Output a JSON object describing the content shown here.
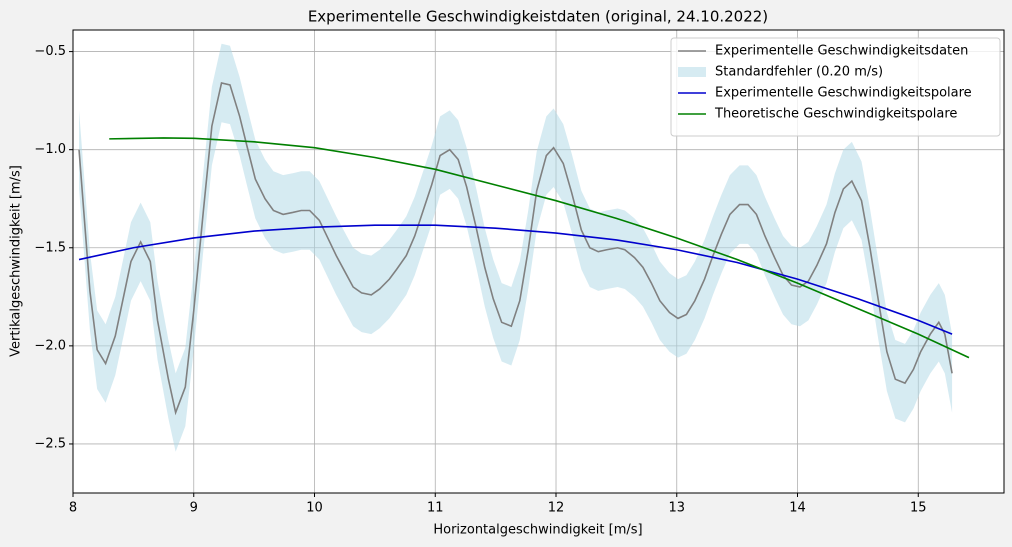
{
  "chart_data": {
    "type": "line",
    "title": "Experimentelle Geschwindigkeistdaten (original, 24.10.2022)",
    "x_label": "Horizontalgeschwindigkeit [m/s]",
    "y_label": "Vertikalgeschwindigkeit [m/s]",
    "xlim": [
      8,
      15.71
    ],
    "ylim": [
      -2.75,
      -0.39
    ],
    "xticks": [
      8,
      9,
      10,
      11,
      12,
      13,
      14,
      15
    ],
    "yticks": [
      {
        "value": -0.5,
        "label": "−0.5"
      },
      {
        "value": -1.0,
        "label": "−1.0"
      },
      {
        "value": -1.5,
        "label": "−1.5"
      },
      {
        "value": -2.0,
        "label": "−2.0"
      },
      {
        "value": -2.5,
        "label": "−2.5"
      }
    ],
    "grid": true,
    "legend": "upper right",
    "series": [
      {
        "name": "Experimentelle Geschwindigkeitsdaten",
        "color": "#808080",
        "band": {
          "name": "Standardfehler (0.20 m/s)",
          "color": "#add8e6",
          "error": 0.2
        },
        "x": [
          8.05,
          8.14,
          8.2,
          8.27,
          8.35,
          8.48,
          8.56,
          8.64,
          8.7,
          8.79,
          8.85,
          8.93,
          9.0,
          9.08,
          9.15,
          9.23,
          9.3,
          9.38,
          9.44,
          9.51,
          9.59,
          9.66,
          9.74,
          9.82,
          9.89,
          9.96,
          10.04,
          10.11,
          10.18,
          10.25,
          10.32,
          10.39,
          10.47,
          10.54,
          10.62,
          10.68,
          10.76,
          10.83,
          10.9,
          10.97,
          11.04,
          11.12,
          11.19,
          11.26,
          11.34,
          11.41,
          11.48,
          11.55,
          11.63,
          11.7,
          11.77,
          11.84,
          11.92,
          11.98,
          12.06,
          12.13,
          12.21,
          12.28,
          12.35,
          12.42,
          12.51,
          12.57,
          12.65,
          12.72,
          12.79,
          12.86,
          12.94,
          13.01,
          13.08,
          13.15,
          13.23,
          13.3,
          13.37,
          13.44,
          13.52,
          13.59,
          13.66,
          13.73,
          13.81,
          13.88,
          13.95,
          14.02,
          14.09,
          14.16,
          14.24,
          14.31,
          14.38,
          14.45,
          14.53,
          14.6,
          14.67,
          14.74,
          14.81,
          14.89,
          14.96,
          15.02,
          15.1,
          15.17,
          15.22,
          15.28
        ],
        "values": [
          -1.0,
          -1.72,
          -2.02,
          -2.09,
          -1.95,
          -1.57,
          -1.47,
          -1.57,
          -1.87,
          -2.17,
          -2.34,
          -2.21,
          -1.82,
          -1.31,
          -0.88,
          -0.66,
          -0.67,
          -0.83,
          -0.98,
          -1.15,
          -1.25,
          -1.31,
          -1.33,
          -1.32,
          -1.31,
          -1.31,
          -1.36,
          -1.45,
          -1.54,
          -1.62,
          -1.7,
          -1.73,
          -1.74,
          -1.71,
          -1.66,
          -1.61,
          -1.54,
          -1.44,
          -1.31,
          -1.18,
          -1.03,
          -1.0,
          -1.05,
          -1.19,
          -1.4,
          -1.6,
          -1.76,
          -1.88,
          -1.9,
          -1.77,
          -1.51,
          -1.21,
          -1.03,
          -0.99,
          -1.07,
          -1.22,
          -1.41,
          -1.5,
          -1.52,
          -1.51,
          -1.5,
          -1.51,
          -1.55,
          -1.6,
          -1.68,
          -1.77,
          -1.83,
          -1.86,
          -1.84,
          -1.77,
          -1.66,
          -1.54,
          -1.43,
          -1.33,
          -1.28,
          -1.28,
          -1.33,
          -1.44,
          -1.55,
          -1.64,
          -1.69,
          -1.7,
          -1.67,
          -1.59,
          -1.48,
          -1.32,
          -1.2,
          -1.16,
          -1.26,
          -1.5,
          -1.77,
          -2.03,
          -2.17,
          -2.19,
          -2.12,
          -2.03,
          -1.94,
          -1.88,
          -1.94,
          -2.14
        ]
      },
      {
        "name": "Experimentelle Geschwindigkeitspolare",
        "color": "#0000cd",
        "x": [
          8.05,
          8.5,
          9,
          9.5,
          10,
          10.5,
          11,
          11.5,
          12,
          12.5,
          13,
          13.5,
          14,
          14.5,
          15,
          15.28
        ],
        "values": [
          -1.56,
          -1.5,
          -1.45,
          -1.415,
          -1.395,
          -1.385,
          -1.385,
          -1.4,
          -1.425,
          -1.46,
          -1.51,
          -1.575,
          -1.66,
          -1.76,
          -1.87,
          -1.94
        ]
      },
      {
        "name": "Theoretische Geschwindigkeitspolare",
        "color": "#008000",
        "x": [
          8.3,
          8.75,
          9,
          9.5,
          10,
          10.5,
          11,
          11.5,
          12,
          12.5,
          13,
          13.5,
          14,
          14.5,
          15,
          15.42
        ],
        "values": [
          -0.945,
          -0.94,
          -0.942,
          -0.96,
          -0.99,
          -1.04,
          -1.1,
          -1.18,
          -1.26,
          -1.35,
          -1.45,
          -1.56,
          -1.68,
          -1.81,
          -1.94,
          -2.06
        ]
      }
    ]
  }
}
